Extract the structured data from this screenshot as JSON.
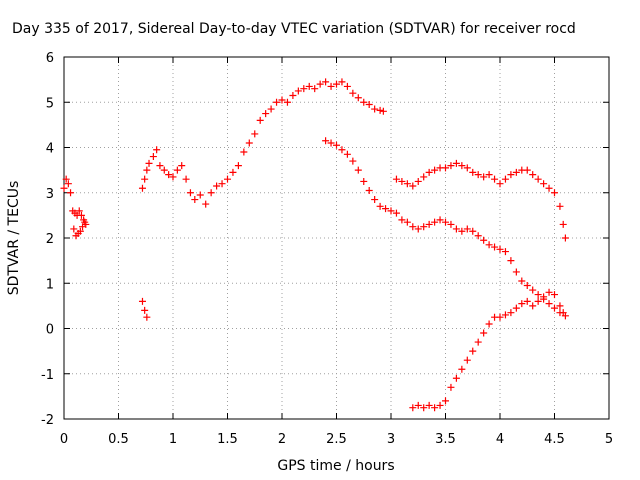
{
  "chart_data": {
    "type": "scatter",
    "title": "Day 335 of 2017, Sidereal Day-to-day VTEC variation (SDTVAR) for receiver rocd",
    "xlabel": "GPS time / hours",
    "ylabel": "SDTVAR / TECUs",
    "xlim": [
      0,
      5
    ],
    "ylim": [
      -2,
      6
    ],
    "xticks": [
      0,
      0.5,
      1,
      1.5,
      2,
      2.5,
      3,
      3.5,
      4,
      4.5,
      5
    ],
    "yticks": [
      -2,
      -1,
      0,
      1,
      2,
      3,
      4,
      5,
      6
    ],
    "grid": true,
    "marker": "+",
    "color": "#ff0000",
    "series": [
      {
        "name": "s1",
        "points": [
          [
            0.0,
            3.1
          ],
          [
            0.02,
            3.3
          ],
          [
            0.04,
            3.2
          ],
          [
            0.06,
            3.0
          ],
          [
            0.08,
            2.6
          ],
          [
            0.1,
            2.55
          ],
          [
            0.12,
            2.5
          ],
          [
            0.14,
            2.6
          ],
          [
            0.16,
            2.5
          ],
          [
            0.18,
            2.4
          ],
          [
            0.2,
            2.3
          ]
        ]
      },
      {
        "name": "s2",
        "points": [
          [
            0.09,
            2.2
          ],
          [
            0.11,
            2.05
          ],
          [
            0.13,
            2.1
          ],
          [
            0.15,
            2.15
          ],
          [
            0.17,
            2.25
          ],
          [
            0.19,
            2.35
          ]
        ]
      },
      {
        "name": "s3",
        "points": [
          [
            0.72,
            0.6
          ],
          [
            0.74,
            0.4
          ],
          [
            0.76,
            0.25
          ]
        ]
      },
      {
        "name": "s4",
        "points": [
          [
            0.72,
            3.1
          ],
          [
            0.74,
            3.3
          ],
          [
            0.76,
            3.5
          ],
          [
            0.78,
            3.65
          ],
          [
            0.82,
            3.8
          ],
          [
            0.85,
            3.95
          ],
          [
            0.88,
            3.6
          ],
          [
            0.92,
            3.5
          ],
          [
            0.96,
            3.4
          ],
          [
            1.0,
            3.35
          ],
          [
            1.04,
            3.5
          ],
          [
            1.08,
            3.6
          ],
          [
            1.12,
            3.3
          ],
          [
            1.16,
            3.0
          ],
          [
            1.2,
            2.85
          ],
          [
            1.25,
            2.95
          ],
          [
            1.3,
            2.75
          ],
          [
            1.35,
            3.0
          ],
          [
            1.4,
            3.15
          ],
          [
            1.45,
            3.2
          ],
          [
            1.5,
            3.3
          ],
          [
            1.55,
            3.45
          ],
          [
            1.6,
            3.6
          ],
          [
            1.65,
            3.9
          ],
          [
            1.7,
            4.1
          ],
          [
            1.75,
            4.3
          ],
          [
            1.8,
            4.6
          ],
          [
            1.85,
            4.75
          ],
          [
            1.9,
            4.85
          ],
          [
            1.95,
            5.0
          ],
          [
            2.0,
            5.05
          ],
          [
            2.05,
            5.0
          ],
          [
            2.1,
            5.15
          ],
          [
            2.15,
            5.25
          ],
          [
            2.2,
            5.3
          ],
          [
            2.25,
            5.35
          ],
          [
            2.3,
            5.3
          ],
          [
            2.35,
            5.4
          ],
          [
            2.4,
            5.45
          ],
          [
            2.45,
            5.35
          ],
          [
            2.5,
            5.4
          ],
          [
            2.55,
            5.45
          ],
          [
            2.6,
            5.35
          ],
          [
            2.65,
            5.2
          ],
          [
            2.7,
            5.1
          ],
          [
            2.75,
            5.0
          ],
          [
            2.8,
            4.95
          ],
          [
            2.85,
            4.85
          ],
          [
            2.9,
            4.82
          ],
          [
            2.93,
            4.8
          ]
        ]
      },
      {
        "name": "s5",
        "points": [
          [
            2.4,
            4.15
          ],
          [
            2.45,
            4.1
          ],
          [
            2.5,
            4.05
          ],
          [
            2.55,
            3.95
          ],
          [
            2.6,
            3.85
          ],
          [
            2.65,
            3.7
          ],
          [
            2.7,
            3.5
          ],
          [
            2.75,
            3.25
          ],
          [
            2.8,
            3.05
          ],
          [
            2.85,
            2.85
          ],
          [
            2.9,
            2.7
          ],
          [
            2.95,
            2.65
          ],
          [
            3.0,
            2.6
          ],
          [
            3.05,
            2.55
          ],
          [
            3.1,
            2.4
          ],
          [
            3.15,
            2.35
          ],
          [
            3.2,
            2.25
          ],
          [
            3.25,
            2.2
          ],
          [
            3.3,
            2.25
          ],
          [
            3.35,
            2.3
          ],
          [
            3.4,
            2.35
          ],
          [
            3.45,
            2.4
          ],
          [
            3.5,
            2.35
          ],
          [
            3.55,
            2.3
          ],
          [
            3.6,
            2.2
          ],
          [
            3.65,
            2.15
          ],
          [
            3.7,
            2.2
          ],
          [
            3.75,
            2.15
          ],
          [
            3.8,
            2.05
          ],
          [
            3.85,
            1.95
          ],
          [
            3.9,
            1.85
          ],
          [
            3.95,
            1.8
          ],
          [
            4.0,
            1.75
          ],
          [
            4.05,
            1.7
          ],
          [
            4.1,
            1.5
          ],
          [
            4.15,
            1.25
          ],
          [
            4.2,
            1.05
          ],
          [
            4.25,
            0.95
          ],
          [
            4.3,
            0.85
          ],
          [
            4.35,
            0.75
          ],
          [
            4.4,
            0.65
          ],
          [
            4.45,
            0.55
          ],
          [
            4.5,
            0.45
          ],
          [
            4.55,
            0.35
          ],
          [
            4.6,
            0.28
          ]
        ]
      },
      {
        "name": "s6",
        "points": [
          [
            3.05,
            3.3
          ],
          [
            3.1,
            3.25
          ],
          [
            3.15,
            3.2
          ],
          [
            3.2,
            3.15
          ],
          [
            3.25,
            3.25
          ],
          [
            3.3,
            3.35
          ],
          [
            3.35,
            3.45
          ],
          [
            3.4,
            3.5
          ],
          [
            3.45,
            3.55
          ],
          [
            3.5,
            3.55
          ],
          [
            3.55,
            3.6
          ],
          [
            3.6,
            3.65
          ],
          [
            3.65,
            3.6
          ],
          [
            3.7,
            3.55
          ],
          [
            3.75,
            3.45
          ],
          [
            3.8,
            3.4
          ],
          [
            3.85,
            3.35
          ],
          [
            3.9,
            3.4
          ],
          [
            3.95,
            3.3
          ],
          [
            4.0,
            3.2
          ],
          [
            4.05,
            3.3
          ],
          [
            4.1,
            3.4
          ],
          [
            4.15,
            3.45
          ],
          [
            4.2,
            3.5
          ],
          [
            4.25,
            3.5
          ],
          [
            4.3,
            3.4
          ],
          [
            4.35,
            3.3
          ],
          [
            4.4,
            3.2
          ],
          [
            4.45,
            3.1
          ],
          [
            4.5,
            3.0
          ],
          [
            4.55,
            2.7
          ],
          [
            4.58,
            2.3
          ],
          [
            4.6,
            2.0
          ]
        ]
      },
      {
        "name": "s7",
        "points": [
          [
            3.2,
            -1.75
          ],
          [
            3.25,
            -1.7
          ],
          [
            3.3,
            -1.75
          ],
          [
            3.35,
            -1.7
          ],
          [
            3.4,
            -1.75
          ],
          [
            3.45,
            -1.7
          ],
          [
            3.5,
            -1.6
          ],
          [
            3.55,
            -1.3
          ],
          [
            3.6,
            -1.1
          ],
          [
            3.65,
            -0.9
          ],
          [
            3.7,
            -0.7
          ],
          [
            3.75,
            -0.5
          ],
          [
            3.8,
            -0.3
          ],
          [
            3.85,
            -0.1
          ],
          [
            3.9,
            0.1
          ],
          [
            3.95,
            0.25
          ],
          [
            4.0,
            0.25
          ],
          [
            4.05,
            0.3
          ],
          [
            4.1,
            0.35
          ],
          [
            4.15,
            0.45
          ],
          [
            4.2,
            0.55
          ],
          [
            4.25,
            0.6
          ],
          [
            4.3,
            0.5
          ],
          [
            4.35,
            0.6
          ],
          [
            4.4,
            0.7
          ],
          [
            4.45,
            0.8
          ],
          [
            4.5,
            0.75
          ],
          [
            4.55,
            0.5
          ],
          [
            4.58,
            0.35
          ]
        ]
      }
    ]
  }
}
